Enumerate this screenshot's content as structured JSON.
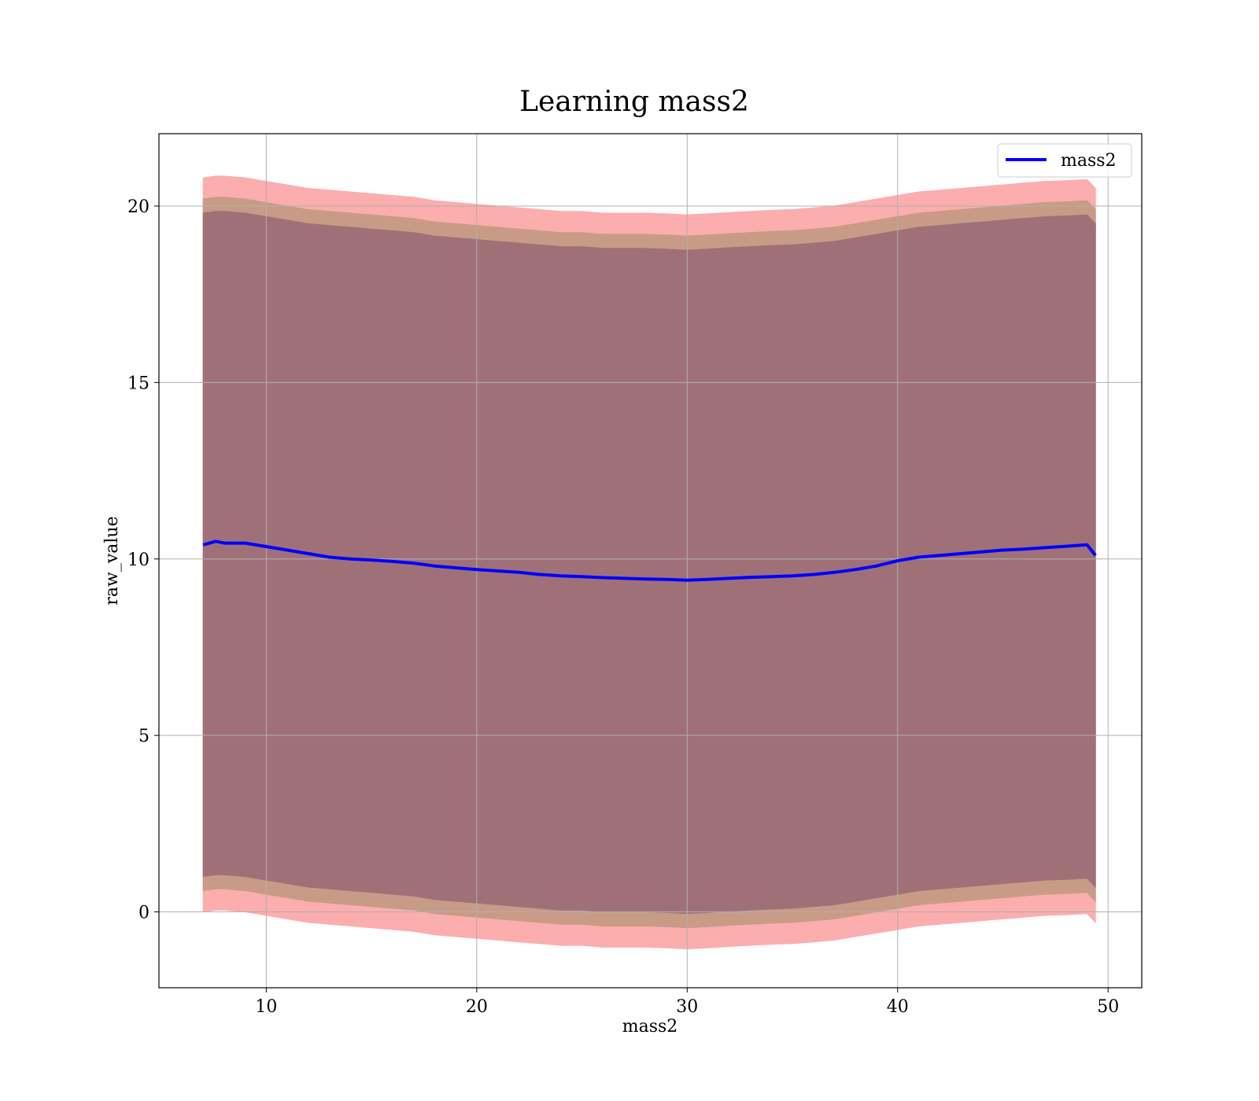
{
  "chart_data": {
    "type": "area",
    "title": "Learning mass2",
    "xlabel": "mass2",
    "ylabel": "raw_value",
    "xlim": [
      4.9,
      51.6
    ],
    "ylim": [
      -2.15,
      22.05
    ],
    "x_ticks": [
      10,
      20,
      30,
      40,
      50
    ],
    "y_ticks": [
      0,
      5,
      10,
      15,
      20
    ],
    "grid": true,
    "legend": {
      "position": "top-right",
      "entries": [
        "mass2"
      ]
    },
    "colors": {
      "line": "#0000ff",
      "band_outer": "#fcadad",
      "band_middle": "#c89b86",
      "band_inner": "#a07078",
      "grid": "#b0b0b0"
    },
    "series": [
      {
        "name": "mass2",
        "x": [
          7.0,
          7.6,
          8,
          9,
          10,
          11,
          12,
          13,
          14,
          15,
          16,
          17,
          18,
          19,
          20,
          21,
          22,
          23,
          24,
          25,
          26,
          27,
          28,
          29,
          30,
          31,
          32,
          33,
          34,
          35,
          36,
          37,
          38,
          39,
          40,
          41,
          42,
          43,
          44,
          45,
          46,
          47,
          48,
          49,
          49.4
        ],
        "y": [
          10.4,
          10.5,
          10.45,
          10.45,
          10.35,
          10.25,
          10.15,
          10.05,
          10.0,
          9.97,
          9.93,
          9.88,
          9.8,
          9.75,
          9.7,
          9.66,
          9.62,
          9.56,
          9.52,
          9.5,
          9.47,
          9.45,
          9.43,
          9.42,
          9.4,
          9.42,
          9.45,
          9.48,
          9.5,
          9.52,
          9.56,
          9.62,
          9.7,
          9.8,
          9.95,
          10.05,
          10.1,
          10.15,
          10.2,
          10.25,
          10.28,
          10.32,
          10.36,
          10.4,
          10.1
        ]
      }
    ],
    "bands": [
      {
        "upper": [
          20.8,
          20.85,
          20.85,
          20.8,
          20.7,
          20.6,
          20.5,
          20.45,
          20.4,
          20.35,
          20.3,
          20.25,
          20.15,
          20.1,
          20.05,
          20.0,
          19.95,
          19.9,
          19.85,
          19.85,
          19.8,
          19.8,
          19.8,
          19.78,
          19.75,
          19.78,
          19.82,
          19.85,
          19.88,
          19.9,
          19.95,
          20.0,
          20.1,
          20.2,
          20.3,
          20.4,
          20.45,
          20.5,
          20.55,
          20.6,
          20.65,
          20.7,
          20.72,
          20.75,
          20.5
        ],
        "lower": [
          0.0,
          0.05,
          0.05,
          0.0,
          -0.1,
          -0.2,
          -0.3,
          -0.35,
          -0.4,
          -0.45,
          -0.5,
          -0.55,
          -0.65,
          -0.7,
          -0.75,
          -0.8,
          -0.85,
          -0.9,
          -0.95,
          -0.95,
          -1.0,
          -1.0,
          -1.0,
          -1.02,
          -1.05,
          -1.02,
          -0.98,
          -0.95,
          -0.92,
          -0.9,
          -0.85,
          -0.8,
          -0.7,
          -0.6,
          -0.5,
          -0.4,
          -0.35,
          -0.3,
          -0.25,
          -0.2,
          -0.15,
          -0.1,
          -0.08,
          -0.05,
          -0.3
        ]
      },
      {
        "upper": [
          20.2,
          20.25,
          20.25,
          20.2,
          20.1,
          20.0,
          19.9,
          19.85,
          19.8,
          19.75,
          19.7,
          19.65,
          19.55,
          19.5,
          19.45,
          19.4,
          19.35,
          19.3,
          19.25,
          19.25,
          19.2,
          19.2,
          19.2,
          19.18,
          19.15,
          19.18,
          19.22,
          19.25,
          19.28,
          19.3,
          19.35,
          19.4,
          19.5,
          19.6,
          19.7,
          19.8,
          19.85,
          19.9,
          19.95,
          20.0,
          20.05,
          20.1,
          20.12,
          20.15,
          19.9
        ],
        "lower": [
          0.6,
          0.65,
          0.65,
          0.6,
          0.5,
          0.4,
          0.3,
          0.25,
          0.2,
          0.15,
          0.1,
          0.05,
          -0.05,
          -0.1,
          -0.15,
          -0.2,
          -0.25,
          -0.3,
          -0.35,
          -0.35,
          -0.4,
          -0.4,
          -0.4,
          -0.42,
          -0.45,
          -0.42,
          -0.38,
          -0.35,
          -0.32,
          -0.3,
          -0.25,
          -0.2,
          -0.1,
          0.0,
          0.1,
          0.2,
          0.25,
          0.3,
          0.35,
          0.4,
          0.45,
          0.5,
          0.52,
          0.55,
          0.3
        ]
      },
      {
        "upper": [
          19.8,
          19.85,
          19.85,
          19.8,
          19.7,
          19.6,
          19.5,
          19.45,
          19.4,
          19.35,
          19.3,
          19.25,
          19.15,
          19.1,
          19.05,
          19.0,
          18.95,
          18.9,
          18.85,
          18.85,
          18.8,
          18.8,
          18.8,
          18.78,
          18.75,
          18.78,
          18.82,
          18.85,
          18.88,
          18.9,
          18.95,
          19.0,
          19.1,
          19.2,
          19.3,
          19.4,
          19.45,
          19.5,
          19.55,
          19.6,
          19.65,
          19.7,
          19.72,
          19.75,
          19.5
        ],
        "lower": [
          1.0,
          1.05,
          1.05,
          1.0,
          0.9,
          0.8,
          0.7,
          0.65,
          0.6,
          0.55,
          0.5,
          0.45,
          0.35,
          0.3,
          0.25,
          0.2,
          0.15,
          0.1,
          0.05,
          0.05,
          0.0,
          0.0,
          0.0,
          -0.02,
          -0.05,
          -0.02,
          0.02,
          0.05,
          0.08,
          0.1,
          0.15,
          0.2,
          0.3,
          0.4,
          0.5,
          0.6,
          0.65,
          0.7,
          0.75,
          0.8,
          0.85,
          0.9,
          0.92,
          0.95,
          0.7
        ]
      }
    ]
  }
}
